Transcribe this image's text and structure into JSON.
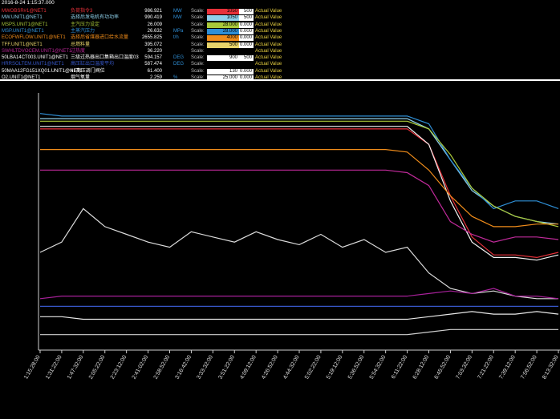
{
  "header": {
    "timestamp": "2016-8-24 1:15:37.000"
  },
  "legend": {
    "scale_label": "Scale:",
    "actual_label": "Actual Value",
    "rows": [
      {
        "tag": "MWOBSR#1@NET1",
        "desc": "负荷指令3",
        "value": "986.921",
        "unit": "MW",
        "min": "1050",
        "max": "500",
        "color": "#e8313a",
        "text_color": "#e8313a"
      },
      {
        "tag": "MW.UNIT1@NET1",
        "desc": "选择后发电机有功功率",
        "value": "990.419",
        "unit": "MW",
        "min": "1050",
        "max": "500",
        "color": "#8fd0ea",
        "text_color": "#8fd0ea"
      },
      {
        "tag": "MSPS.UNIT1@NET1",
        "desc": "主汽压力设定",
        "value": "26.009",
        "unit": "",
        "min": "28.000",
        "max": "0.000",
        "color": "#a9c93a",
        "text_color": "#a9c93a"
      },
      {
        "tag": "MSP.UNIT1@NET1",
        "desc": "主蒸汽压力",
        "value": "26.632",
        "unit": "MPa",
        "min": "28.000",
        "max": "0.000",
        "color": "#2f8fd6",
        "text_color": "#2f8fd6"
      },
      {
        "tag": "ECOFWFLOW.UNIT1@NET1",
        "desc": "选择后省煤器进口给水流量",
        "value": "2655.825",
        "unit": "t/h",
        "min": "4000",
        "max": "0.000",
        "color": "#f08c1a",
        "text_color": "#f08c1a"
      },
      {
        "tag": "TFF.UNIT1@NET1",
        "desc": "总燃料量",
        "value": "395.072",
        "unit": "",
        "min": "500",
        "max": "0.000",
        "color": "#e7d36a",
        "text_color": "#e7d36a"
      },
      {
        "tag": "SWHLTDVOCEM.UNIT1@NET1",
        "desc": "过热度",
        "value": "36.220",
        "unit": "",
        "min": "",
        "max": "",
        "color": "#b0238e",
        "text_color": "#b0238e"
      },
      {
        "tag": "50LBA14CT003.UNIT1@NET1",
        "desc": "三级过热器出口集箱出口温度03",
        "value": "594.157",
        "unit": "DEG",
        "min": "900",
        "max": "500",
        "color": "#ffffff",
        "text_color": "#ffffff"
      },
      {
        "tag": "HRRSOLTEM.UNIT1@NET1",
        "desc": "高压缸出口温度平均",
        "value": "587.474",
        "unit": "DEG",
        "min": "",
        "max": "",
        "color": "#3757c8",
        "text_color": "#3757c8"
      },
      {
        "tag": "50MAA12FG151XQ01.UNIT1@NET1",
        "desc": "#1高压调门阀位",
        "value": "61.400",
        "unit": "",
        "min": "130",
        "max": "0.000",
        "color": "#ffffff",
        "text_color": "#ffffff"
      },
      {
        "tag": "O2.UNIT1@NET1",
        "desc": "烟气氧量",
        "value": "2.259",
        "unit": "%",
        "min": "25.000",
        "max": "0.000",
        "color": "#ffffff",
        "text_color": "#ffffff"
      }
    ]
  },
  "chart_data": {
    "type": "line",
    "x": [
      "1:15:28:00",
      "1:31:22:00",
      "1:47:32:00",
      "2:05:22:00",
      "2:23:12:00",
      "2:41:02:00",
      "2:58:52:00",
      "3:16:42:00",
      "3:33:32:00",
      "3:51:22:00",
      "4:09:12:00",
      "4:26:52:00",
      "4:44:32:00",
      "5:02:22:00",
      "5:19:12:00",
      "5:36:52:00",
      "5:54:32:00",
      "6:11:22:00",
      "6:28:12:00",
      "6:45:52:00",
      "7:03:32:00",
      "7:21:22:00",
      "7:39:12:00",
      "7:56:52:00",
      "8:13:32:00"
    ],
    "xlabel": "",
    "ylabel": "",
    "ylim": [
      0,
      100
    ],
    "grid": false,
    "series": [
      {
        "name": "MW.UNIT1@NET1",
        "color": "#8fd0ea",
        "values": [
          90,
          90,
          90,
          90,
          90,
          90,
          90,
          90,
          90,
          90,
          90,
          90,
          90,
          90,
          90,
          90,
          90,
          90,
          86,
          74,
          62,
          56,
          52,
          50,
          49
        ]
      },
      {
        "name": "MSP.UNIT1@NET1",
        "color": "#2f8fd6",
        "values": [
          92,
          91,
          91,
          91,
          91,
          91,
          91,
          91,
          91,
          91,
          91,
          91,
          91,
          91,
          91,
          91,
          91,
          91,
          88,
          74,
          63,
          55,
          58,
          58,
          55
        ]
      },
      {
        "name": "MSPS.UNIT1@NET1",
        "color": "#a9c93a",
        "values": [
          89,
          89,
          89,
          89,
          89,
          89,
          89,
          89,
          89,
          89,
          89,
          89,
          89,
          89,
          89,
          89,
          89,
          89,
          86,
          76,
          63,
          56,
          52,
          50,
          48
        ]
      },
      {
        "name": "MWOBSR#1@NET1",
        "color": "#e8313a",
        "values": [
          86,
          86,
          86,
          86,
          86,
          86,
          86,
          86,
          86,
          86,
          86,
          86,
          86,
          86,
          86,
          86,
          86,
          86,
          80,
          60,
          44,
          37,
          37,
          36,
          38
        ]
      },
      {
        "name": "50LBA14CT003.UNIT1@NET1",
        "color": "#f2f2f2",
        "values": [
          87,
          87,
          87,
          87,
          87,
          87,
          87,
          87,
          87,
          87,
          87,
          87,
          87,
          87,
          87,
          87,
          87,
          87,
          80,
          58,
          42,
          36,
          36,
          35,
          37
        ]
      },
      {
        "name": "ECOFWFLOW.UNIT1@NET1",
        "color": "#f08c1a",
        "values": [
          78,
          78,
          78,
          78,
          78,
          78,
          78,
          78,
          78,
          78,
          78,
          78,
          78,
          78,
          78,
          78,
          78,
          77,
          70,
          60,
          52,
          48,
          48,
          49,
          49
        ]
      },
      {
        "name": "SWHLTDVOCEM.UNIT1@NET1",
        "color": "#c02a9a",
        "values": [
          70,
          70,
          70,
          70,
          70,
          70,
          70,
          70,
          70,
          70,
          70,
          70,
          70,
          70,
          70,
          70,
          70,
          69,
          64,
          50,
          45,
          42,
          44,
          44,
          43
        ]
      },
      {
        "name": "TFF.UNIT1@NET1",
        "color": "#dcdcdc",
        "values": [
          38,
          42,
          55,
          48,
          45,
          42,
          40,
          46,
          44,
          42,
          46,
          43,
          41,
          45,
          40,
          43,
          38,
          40,
          30,
          24,
          22,
          23,
          21,
          20,
          20
        ]
      },
      {
        "name": "HRRSOLTEM.UNIT1@NET1",
        "color": "#a8219a",
        "values": [
          20,
          21,
          21,
          21,
          21,
          21,
          21,
          21,
          21,
          21,
          21,
          21,
          21,
          21,
          21,
          21,
          21,
          21,
          22,
          23,
          22,
          24,
          21,
          21,
          20
        ]
      },
      {
        "name": "50MAA12FG151XQ01.UNIT1@NET1",
        "color": "#3757c8",
        "values": [
          17,
          17,
          17,
          17,
          17,
          17,
          17,
          17,
          17,
          17,
          17,
          17,
          17,
          17,
          17,
          17,
          17,
          17,
          17,
          17,
          17,
          17,
          17,
          17,
          17
        ]
      },
      {
        "name": "O2.UNIT1@NET1",
        "color": "#e8e8e8",
        "values": [
          13,
          13,
          12,
          12,
          12,
          12,
          12,
          12,
          12,
          12,
          12,
          12,
          12,
          12,
          12,
          12,
          12,
          12,
          13,
          14,
          15,
          14,
          14,
          15,
          14
        ]
      },
      {
        "name": "O2.UNIT1@NET1",
        "color": "#cfcfcf",
        "values": [
          6,
          6,
          6,
          6,
          6,
          6,
          6,
          6,
          6,
          6,
          6,
          6,
          6,
          6,
          6,
          6,
          6,
          6,
          7,
          8,
          8,
          8,
          8,
          8,
          8
        ]
      }
    ]
  }
}
